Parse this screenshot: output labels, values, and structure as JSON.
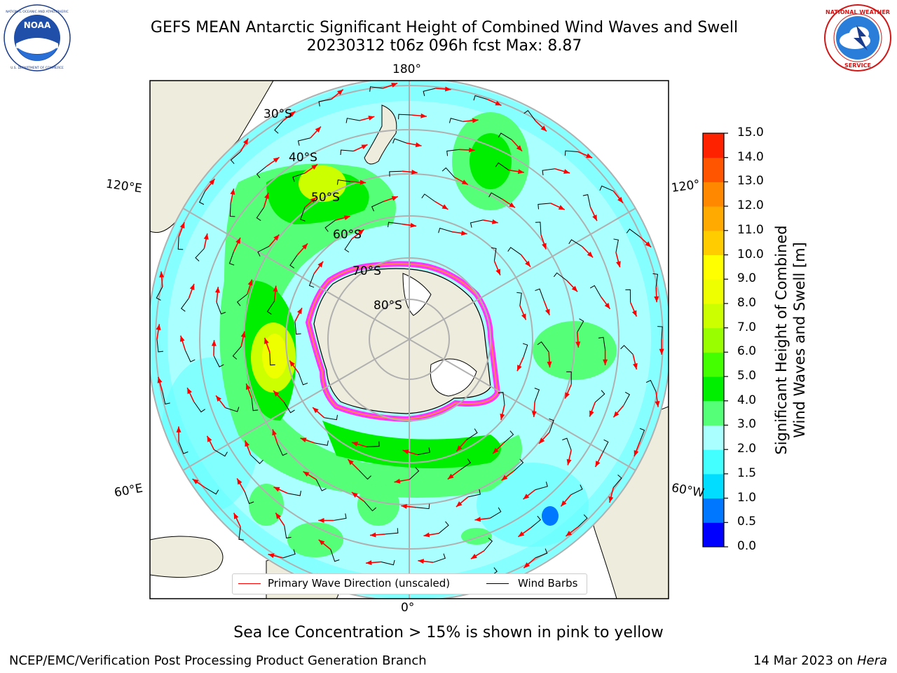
{
  "header": {
    "title_line1": "GEFS MEAN Antarctic Significant Height of Combined Wind Waves and Swell",
    "title_line2": "20230312 t06z 096h fcst   Max: 8.87"
  },
  "logos": {
    "left": {
      "name": "noaa-logo",
      "text": "NOAA",
      "ring_text": "NATIONAL OCEANIC AND ATMOSPHERIC ADMINISTRATION · U.S. DEPARTMENT OF COMMERCE"
    },
    "right": {
      "name": "nws-logo",
      "ring_text": "NATIONAL WEATHER SERVICE"
    }
  },
  "map": {
    "projection": "south-polar-stereographic",
    "longitude_labels": {
      "top": "180°",
      "bottom": "0°",
      "left_upper": "120°E",
      "left_lower": "60°E",
      "right_upper": "120°",
      "right_lower": "60°W"
    },
    "latitude_labels": [
      "30°S",
      "40°S",
      "50°S",
      "60°S",
      "70°S",
      "80°S"
    ],
    "colors": {
      "land": "#eeecdc",
      "ocean_low": "#aaffff",
      "sea_ice": "#ff33ff",
      "wave_arrow": "#ff0000",
      "wind_barb": "#000000"
    }
  },
  "legend": {
    "items": [
      {
        "label": "Primary Wave Direction (unscaled)",
        "color": "#ff0000"
      },
      {
        "label": "Wind Barbs",
        "color": "#000000"
      }
    ]
  },
  "colorbar": {
    "label_line1": "Significant Height of Combined",
    "label_line2": "Wind Waves and Swell [m]",
    "ticks": [
      "0.0",
      "0.5",
      "1.0",
      "1.5",
      "2.0",
      "3.0",
      "4.0",
      "5.0",
      "6.0",
      "7.0",
      "8.0",
      "9.0",
      "10.0",
      "11.0",
      "12.0",
      "13.0",
      "14.0",
      "15.0"
    ],
    "colors": [
      "#0000ff",
      "#0077ff",
      "#00ddff",
      "#44ffff",
      "#aaffff",
      "#55ff77",
      "#00ee00",
      "#44ff00",
      "#99ff00",
      "#ccff00",
      "#eeff00",
      "#ffff00",
      "#ffcc00",
      "#ffaa00",
      "#ff8800",
      "#ff5500",
      "#ff2200"
    ]
  },
  "subtitle": "Sea Ice Concentration > 15% is shown in pink to yellow",
  "footer": {
    "left": "NCEP/EMC/Verification Post Processing Product Generation Branch",
    "right_date": "14 Mar 2023 on",
    "right_host": "Hera"
  }
}
